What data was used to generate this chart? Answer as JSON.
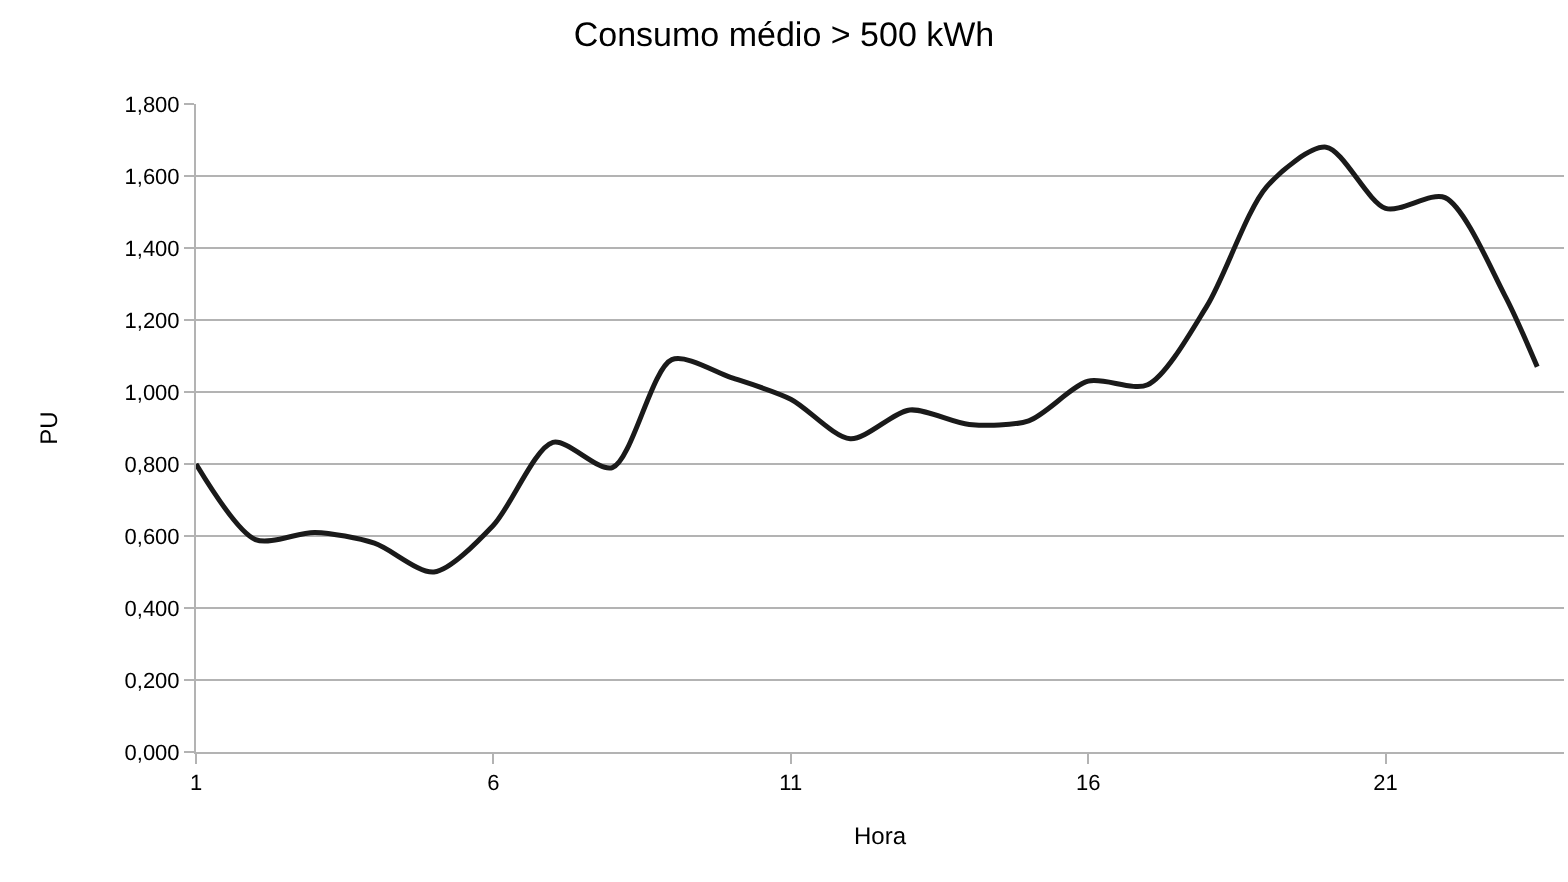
{
  "chart_data": {
    "type": "line",
    "title": "Consumo médio > 500 kWh",
    "xlabel": "Hora",
    "ylabel": "PU",
    "x": [
      1,
      2,
      3,
      4,
      5,
      6,
      7,
      8,
      9,
      10,
      11,
      12,
      13,
      14,
      15,
      16,
      17,
      18,
      19,
      20,
      21,
      22,
      23,
      23.55
    ],
    "series": [
      {
        "color": "#1a1a1a",
        "values": [
          0.8,
          0.59,
          0.61,
          0.58,
          0.5,
          0.63,
          0.86,
          0.79,
          1.09,
          1.04,
          0.98,
          0.87,
          0.95,
          0.91,
          0.92,
          1.03,
          1.02,
          1.24,
          1.57,
          1.68,
          1.51,
          1.54,
          1.27,
          1.07
        ]
      }
    ],
    "xlim": [
      1,
      24
    ],
    "xticks": [
      1,
      6,
      11,
      16,
      21
    ],
    "ylim": [
      0,
      1.8
    ],
    "yticks": [
      {
        "value": 0,
        "label": "0,000"
      },
      {
        "value": 0.2,
        "label": "0,200"
      },
      {
        "value": 0.4,
        "label": "0,400"
      },
      {
        "value": 0.6,
        "label": "0,600"
      },
      {
        "value": 0.8,
        "label": "0,800"
      },
      {
        "value": 1,
        "label": "1,000"
      },
      {
        "value": 1.2,
        "label": "1,200"
      },
      {
        "value": 1.4,
        "label": "1,400"
      },
      {
        "value": 1.6,
        "label": "1,600"
      },
      {
        "value": 1.8,
        "label": "1,800"
      }
    ],
    "grid": "y",
    "marker": "none",
    "line_style": "solid"
  }
}
